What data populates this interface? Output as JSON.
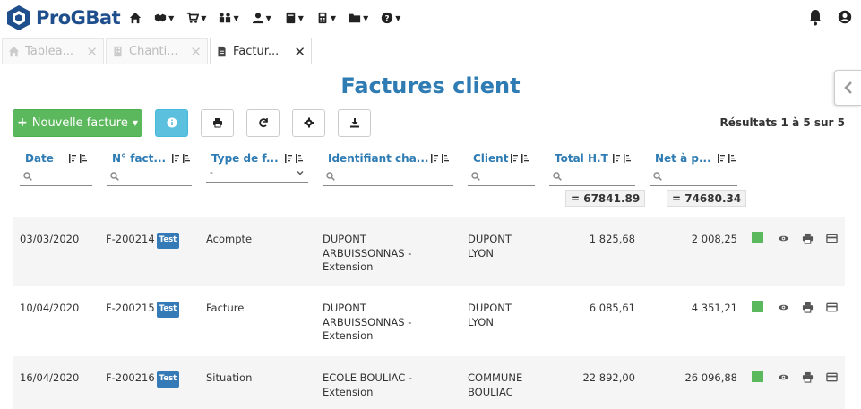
{
  "app": {
    "name": "ProGBat"
  },
  "tabs": [
    {
      "label": "Tablea...",
      "active": false
    },
    {
      "label": "Chanti...",
      "active": false
    },
    {
      "label": "Factur...",
      "active": true
    }
  ],
  "page": {
    "title": "Factures client"
  },
  "toolbar": {
    "new_invoice_label": "Nouvelle facture",
    "results_text": "Résultats 1 à 5 sur 5"
  },
  "columns": [
    {
      "label": "Date"
    },
    {
      "label": "N° fact..."
    },
    {
      "label": "Type de f..."
    },
    {
      "label": "Identifiant cha..."
    },
    {
      "label": "Client"
    },
    {
      "label": "Total H.T"
    },
    {
      "label": "Net à p..."
    }
  ],
  "filters": {
    "type_selected": "-"
  },
  "totals": {
    "total_ht": "= 67841.89",
    "net": "= 74680.34"
  },
  "rows": [
    {
      "date": "03/03/2020",
      "number": "F-200214",
      "badge": "Test",
      "type": "Acompte",
      "site": [
        "DUPONT",
        "ARBUISSONNAS -",
        "Extension"
      ],
      "client": [
        "DUPONT",
        "LYON"
      ],
      "total_ht": "1 825,68",
      "net": "2 008,25"
    },
    {
      "date": "10/04/2020",
      "number": "F-200215",
      "badge": "Test",
      "type": "Facture",
      "site": [
        "DUPONT",
        "ARBUISSONNAS -",
        "Extension"
      ],
      "client": [
        "DUPONT",
        "LYON"
      ],
      "total_ht": "6 085,61",
      "net": "4 351,21"
    },
    {
      "date": "16/04/2020",
      "number": "F-200216",
      "badge": "Test",
      "type": "Situation",
      "site": [
        "ECOLE BOULIAC -",
        "Extension"
      ],
      "client": [
        "COMMUNE",
        "BOULIAC"
      ],
      "total_ht": "22 892,00",
      "net": "26 096,88"
    }
  ],
  "colors": {
    "brand": "#1f4e8c",
    "title": "#2e7cb3",
    "success": "#5cb85c",
    "info": "#5bc0de",
    "badge": "#337ab7"
  }
}
